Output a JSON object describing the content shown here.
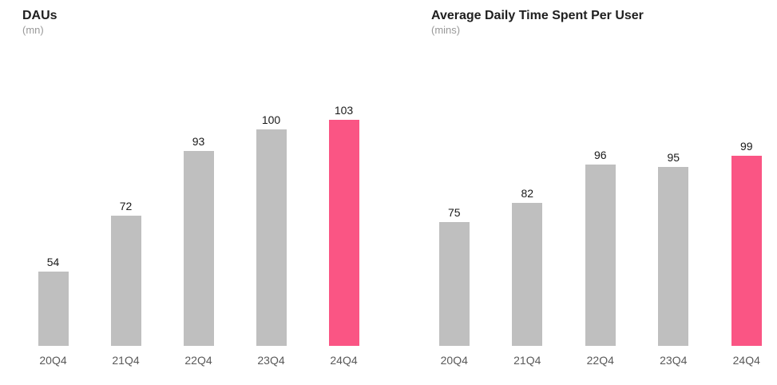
{
  "page": {
    "background": "#ffffff"
  },
  "chart_data": [
    {
      "type": "bar",
      "title": "DAUs",
      "subtitle": "(mn)",
      "categories": [
        "20Q4",
        "21Q4",
        "22Q4",
        "23Q4",
        "24Q4"
      ],
      "values": [
        54,
        72,
        93,
        100,
        103
      ],
      "highlight_index": 4,
      "ylim": [
        30,
        110
      ],
      "grid": false,
      "legend": "none",
      "value_labels": true,
      "colors": {
        "bar": "#bfbfbf",
        "highlight": "#fa5584",
        "title": "#1f1f1f",
        "subtitle": "#999999",
        "value_label": "#1a1a1a",
        "tick_label": "#595959"
      }
    },
    {
      "type": "bar",
      "title": "Average Daily Time Spent Per User",
      "subtitle": "(mins)",
      "categories": [
        "20Q4",
        "21Q4",
        "22Q4",
        "23Q4",
        "24Q4"
      ],
      "values": [
        75,
        82,
        96,
        95,
        99
      ],
      "highlight_index": 4,
      "ylim": [
        30,
        120
      ],
      "grid": false,
      "legend": "none",
      "value_labels": true,
      "colors": {
        "bar": "#bfbfbf",
        "highlight": "#fa5584",
        "title": "#1f1f1f",
        "subtitle": "#999999",
        "value_label": "#1a1a1a",
        "tick_label": "#595959"
      }
    }
  ]
}
